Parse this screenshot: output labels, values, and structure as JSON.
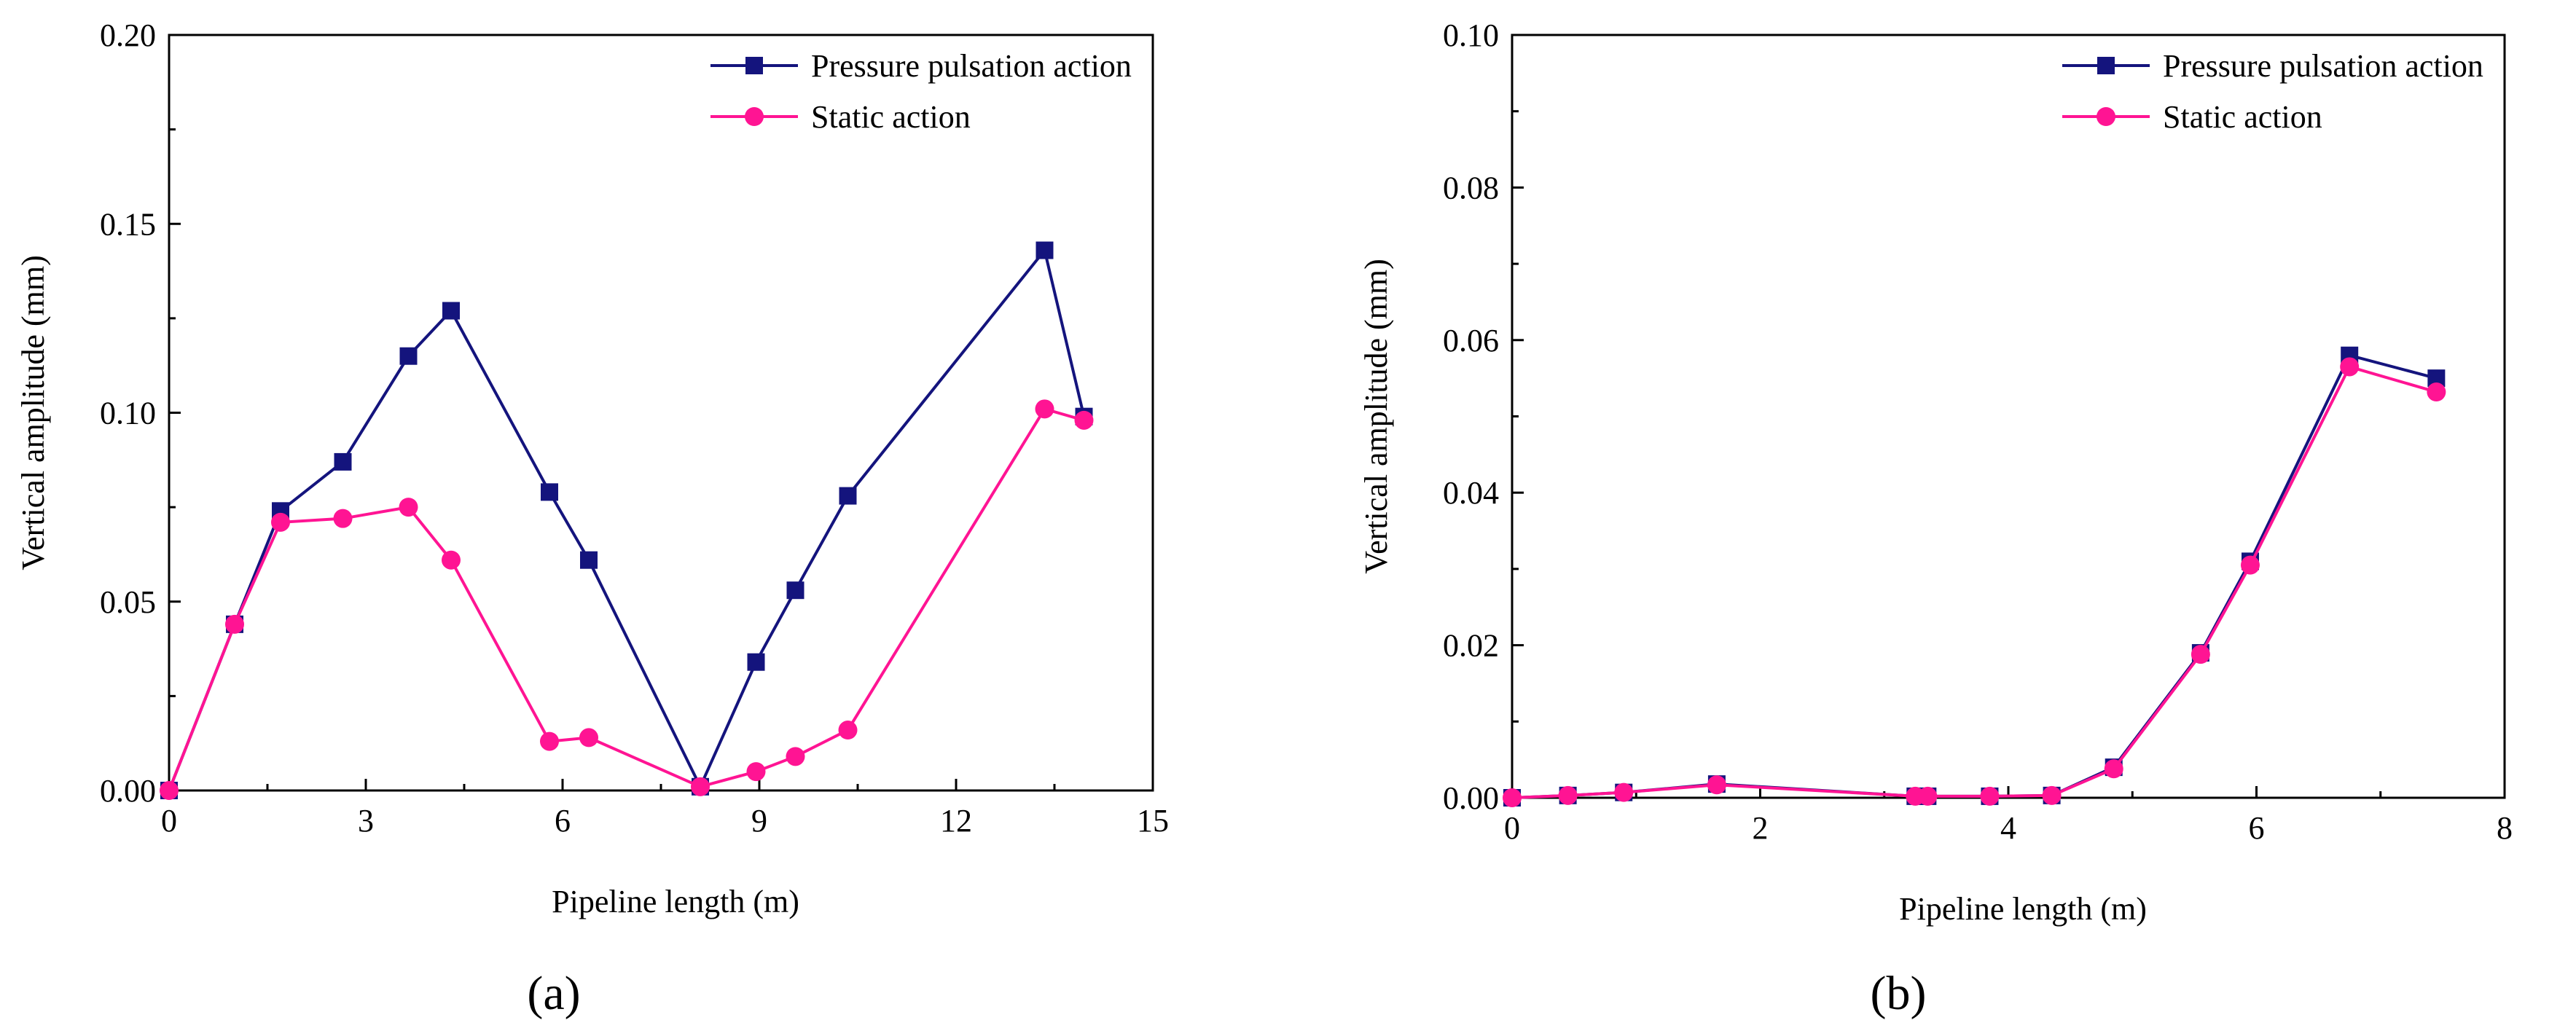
{
  "colors": {
    "pressure": "#14147d",
    "static": "#ff1493",
    "axis": "#000000"
  },
  "chart_data": [
    {
      "type": "line",
      "panel_label": "(a)",
      "title": "",
      "xlabel": "Pipeline length (m)",
      "ylabel": "Vertical amplitude (mm)",
      "xlim": [
        0,
        15
      ],
      "ylim": [
        0,
        0.2
      ],
      "xticks": [
        "0",
        "3",
        "6",
        "9",
        "12",
        "15"
      ],
      "yticks": [
        "0.00",
        "0.05",
        "0.10",
        "0.15",
        "0.20"
      ],
      "grid": false,
      "legend_position": "top-right",
      "series": [
        {
          "name": "Pressure pulsation action",
          "marker": "square",
          "x": [
            0,
            1.0,
            1.7,
            2.65,
            3.65,
            4.3,
            5.8,
            6.4,
            8.1,
            8.95,
            9.55,
            10.35,
            13.35,
            13.95
          ],
          "y": [
            0.0,
            0.044,
            0.074,
            0.087,
            0.115,
            0.127,
            0.079,
            0.061,
            0.001,
            0.034,
            0.053,
            0.078,
            0.143,
            0.099
          ]
        },
        {
          "name": "Static action",
          "marker": "circle",
          "x": [
            0,
            1.0,
            1.7,
            2.65,
            3.65,
            4.3,
            5.8,
            6.4,
            8.1,
            8.95,
            9.55,
            10.35,
            13.35,
            13.95
          ],
          "y": [
            0.0,
            0.044,
            0.071,
            0.072,
            0.075,
            0.061,
            0.013,
            0.014,
            0.001,
            0.005,
            0.009,
            0.016,
            0.101,
            0.098
          ]
        }
      ]
    },
    {
      "type": "line",
      "panel_label": "(b)",
      "title": "",
      "xlabel": "Pipeline length (m)",
      "ylabel": "Vertical amplitude (mm)",
      "xlim": [
        0,
        8
      ],
      "ylim": [
        0,
        0.1
      ],
      "xticks": [
        "0",
        "2",
        "4",
        "6",
        "8"
      ],
      "yticks": [
        "0.00",
        "0.02",
        "0.04",
        "0.06",
        "0.08",
        "0.10"
      ],
      "grid": false,
      "legend_position": "top-right",
      "series": [
        {
          "name": "Pressure pulsation action",
          "marker": "square",
          "x": [
            0,
            0.45,
            0.9,
            1.65,
            3.25,
            3.35,
            3.85,
            4.35,
            4.85,
            5.55,
            5.95,
            6.75,
            7.45
          ],
          "y": [
            0.0,
            0.0003,
            0.0007,
            0.0018,
            0.0002,
            0.0002,
            0.0002,
            0.0003,
            0.004,
            0.019,
            0.031,
            0.058,
            0.055
          ]
        },
        {
          "name": "Static action",
          "marker": "circle",
          "x": [
            0,
            0.45,
            0.9,
            1.65,
            3.25,
            3.35,
            3.85,
            4.35,
            4.85,
            5.55,
            5.95,
            6.75,
            7.45
          ],
          "y": [
            0.0,
            0.0003,
            0.0007,
            0.0017,
            0.0002,
            0.0002,
            0.0002,
            0.0003,
            0.0038,
            0.0188,
            0.0305,
            0.0565,
            0.0532
          ]
        }
      ]
    }
  ]
}
